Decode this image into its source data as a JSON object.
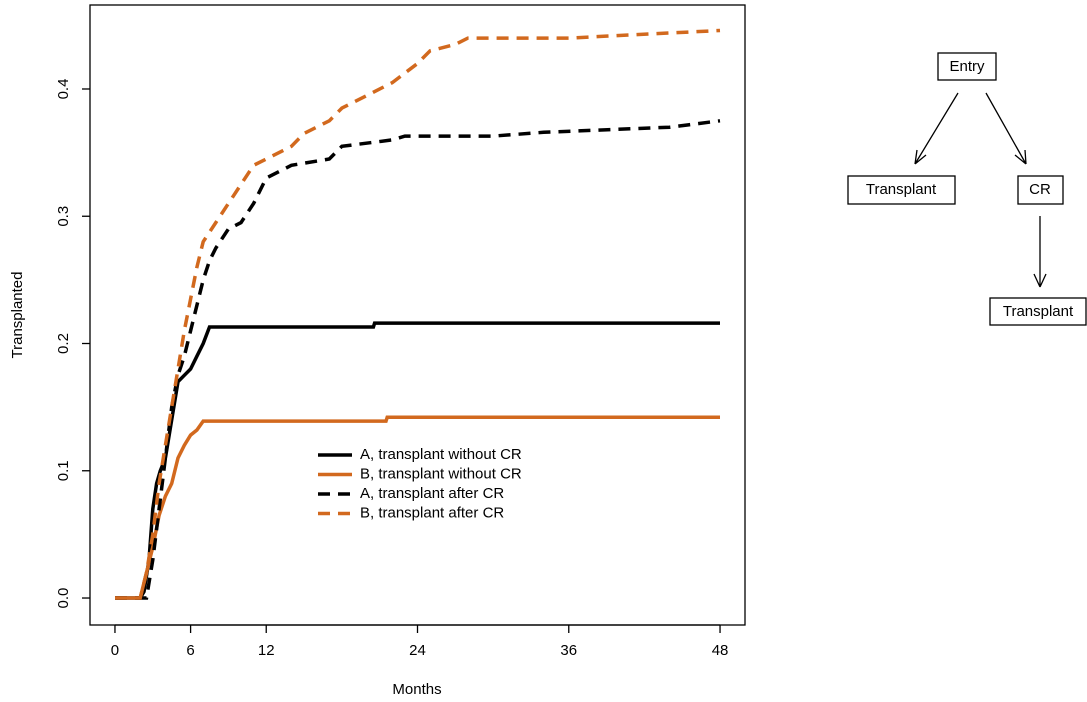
{
  "chart_data": {
    "type": "line",
    "x_label": "Months",
    "y_label": "Transplanted",
    "xlim": [
      -1.98,
      49.98
    ],
    "ylim": [
      -0.0212,
      0.466
    ],
    "xticks": [
      0,
      6,
      12,
      24,
      36,
      48
    ],
    "yticks": [
      {
        "value": 0,
        "label": "0.0"
      },
      0.1,
      0.2,
      0.3,
      0.4
    ],
    "legend_position": "center",
    "series": [
      {
        "name": "A, transplant without CR",
        "color": "#000000",
        "dash": "solid",
        "x": [
          0,
          2,
          2.3,
          2.7,
          3,
          3.3,
          3.6,
          4,
          4.5,
          5,
          5.5,
          6,
          6.5,
          7,
          7.5,
          20.5,
          20.6,
          48
        ],
        "values": [
          0,
          0,
          0.005,
          0.03,
          0.07,
          0.09,
          0.1,
          0.11,
          0.14,
          0.17,
          0.175,
          0.18,
          0.19,
          0.2,
          0.213,
          0.213,
          0.216,
          0.216
        ]
      },
      {
        "name": "B, transplant without CR",
        "color": "#d2691e",
        "dash": "solid",
        "x": [
          0,
          2,
          2.5,
          3,
          3.5,
          4,
          4.5,
          5,
          5.5,
          6,
          6.5,
          7,
          21.5,
          21.6,
          48
        ],
        "values": [
          0,
          0,
          0.02,
          0.04,
          0.065,
          0.08,
          0.09,
          0.11,
          0.12,
          0.128,
          0.132,
          0.139,
          0.139,
          0.142,
          0.142
        ]
      },
      {
        "name": "A, transplant after CR",
        "color": "#000000",
        "dash": "dashed",
        "x": [
          0,
          2.5,
          3,
          3.5,
          4,
          4.5,
          5,
          5.5,
          6,
          6.5,
          7,
          7.5,
          8,
          9,
          10,
          11,
          12,
          13,
          14,
          17,
          18,
          22,
          23,
          30,
          34,
          44,
          48
        ],
        "values": [
          0,
          0,
          0.03,
          0.07,
          0.11,
          0.15,
          0.175,
          0.19,
          0.21,
          0.23,
          0.25,
          0.265,
          0.275,
          0.29,
          0.295,
          0.31,
          0.33,
          0.335,
          0.34,
          0.345,
          0.355,
          0.36,
          0.363,
          0.363,
          0.366,
          0.37,
          0.375
        ]
      },
      {
        "name": "B, transplant after CR",
        "color": "#d2691e",
        "dash": "dashed",
        "x": [
          0,
          2,
          2.5,
          3,
          3.5,
          4,
          4.5,
          5,
          5.5,
          6,
          6.5,
          7,
          8,
          9,
          10,
          11,
          12,
          14,
          15,
          17,
          18,
          20,
          22,
          24,
          25,
          27,
          28,
          36,
          40,
          48
        ],
        "values": [
          0,
          0,
          0.02,
          0.05,
          0.09,
          0.12,
          0.15,
          0.18,
          0.21,
          0.235,
          0.26,
          0.28,
          0.295,
          0.31,
          0.325,
          0.34,
          0.345,
          0.355,
          0.365,
          0.375,
          0.385,
          0.395,
          0.405,
          0.42,
          0.43,
          0.435,
          0.44,
          0.44,
          0.442,
          0.446
        ]
      }
    ]
  },
  "diagram": {
    "nodes": [
      {
        "label": "Entry"
      },
      {
        "label": "Transplant"
      },
      {
        "label": "CR"
      },
      {
        "label": "Transplant"
      }
    ]
  }
}
